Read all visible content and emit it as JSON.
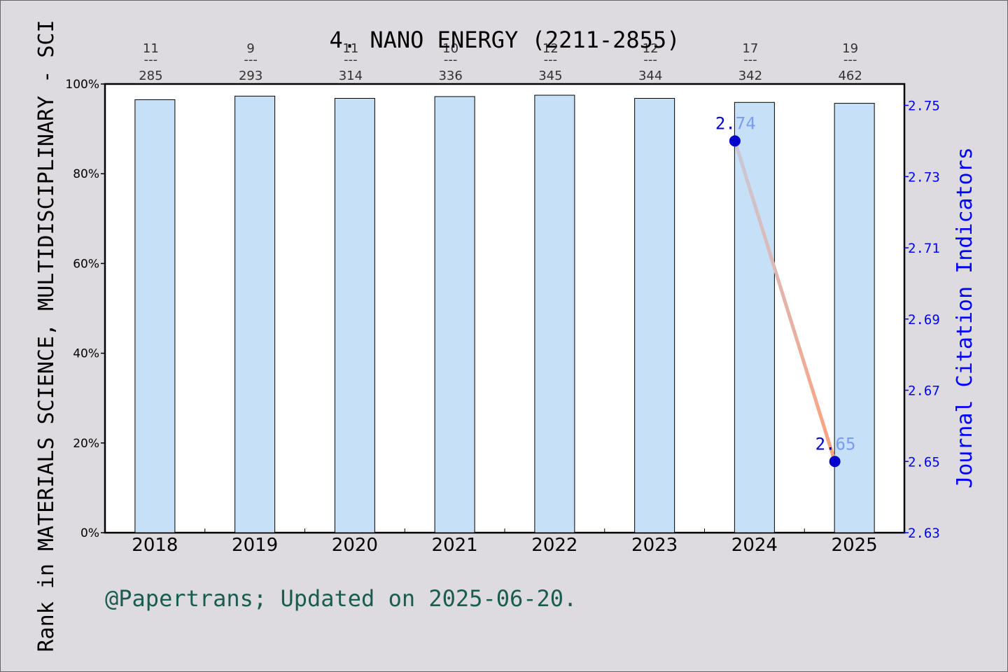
{
  "chart_data": {
    "type": "bar",
    "title": "4. NANO ENERGY (2211-2855)",
    "ylabel": "Rank in MATERIALS SCIENCE, MULTIDISCIPLINARY - SCI",
    "y2label": "Journal Citation Indicators",
    "footer": "@Papertrans; Updated on 2025-06-20.",
    "categories": [
      "2018",
      "2019",
      "2020",
      "2021",
      "2022",
      "2023",
      "2024",
      "2025"
    ],
    "ylim": [
      0,
      100
    ],
    "yticks": [
      "0%",
      "20%",
      "40%",
      "60%",
      "80%",
      "100%"
    ],
    "y2lim": [
      2.63,
      2.756
    ],
    "y2ticks": [
      "2.63",
      "2.65",
      "2.67",
      "2.69",
      "2.71",
      "2.73",
      "2.75"
    ],
    "bars": [
      {
        "year": "2018",
        "value": 96.5,
        "rank": "11",
        "total": "285"
      },
      {
        "year": "2019",
        "value": 97.3,
        "rank": "9",
        "total": "293"
      },
      {
        "year": "2020",
        "value": 96.8,
        "rank": "11",
        "total": "314"
      },
      {
        "year": "2021",
        "value": 97.2,
        "rank": "10",
        "total": "336"
      },
      {
        "year": "2022",
        "value": 97.5,
        "rank": "12",
        "total": "345"
      },
      {
        "year": "2023",
        "value": 96.8,
        "rank": "12",
        "total": "344"
      },
      {
        "year": "2024",
        "value": 95.9,
        "rank": "17",
        "total": "342"
      },
      {
        "year": "2025",
        "value": 95.7,
        "rank": "19",
        "total": "462"
      }
    ],
    "rank_separator": "---",
    "jci_series": [
      {
        "year": "2024",
        "value": 2.74,
        "label_a": "2.",
        "label_b": "74"
      },
      {
        "year": "2025",
        "value": 2.65,
        "label_a": "2.",
        "label_b": "65"
      }
    ],
    "colors": {
      "bar_fill": "#c6e0f7",
      "line_start": "#c8c8d8",
      "line_end": "#ffa07a",
      "marker": "#0000cc",
      "right_axis": "#0000ff",
      "background": "#dedbe0",
      "plot_background": "#ffffff",
      "footer_text": "#1a5c50"
    }
  }
}
